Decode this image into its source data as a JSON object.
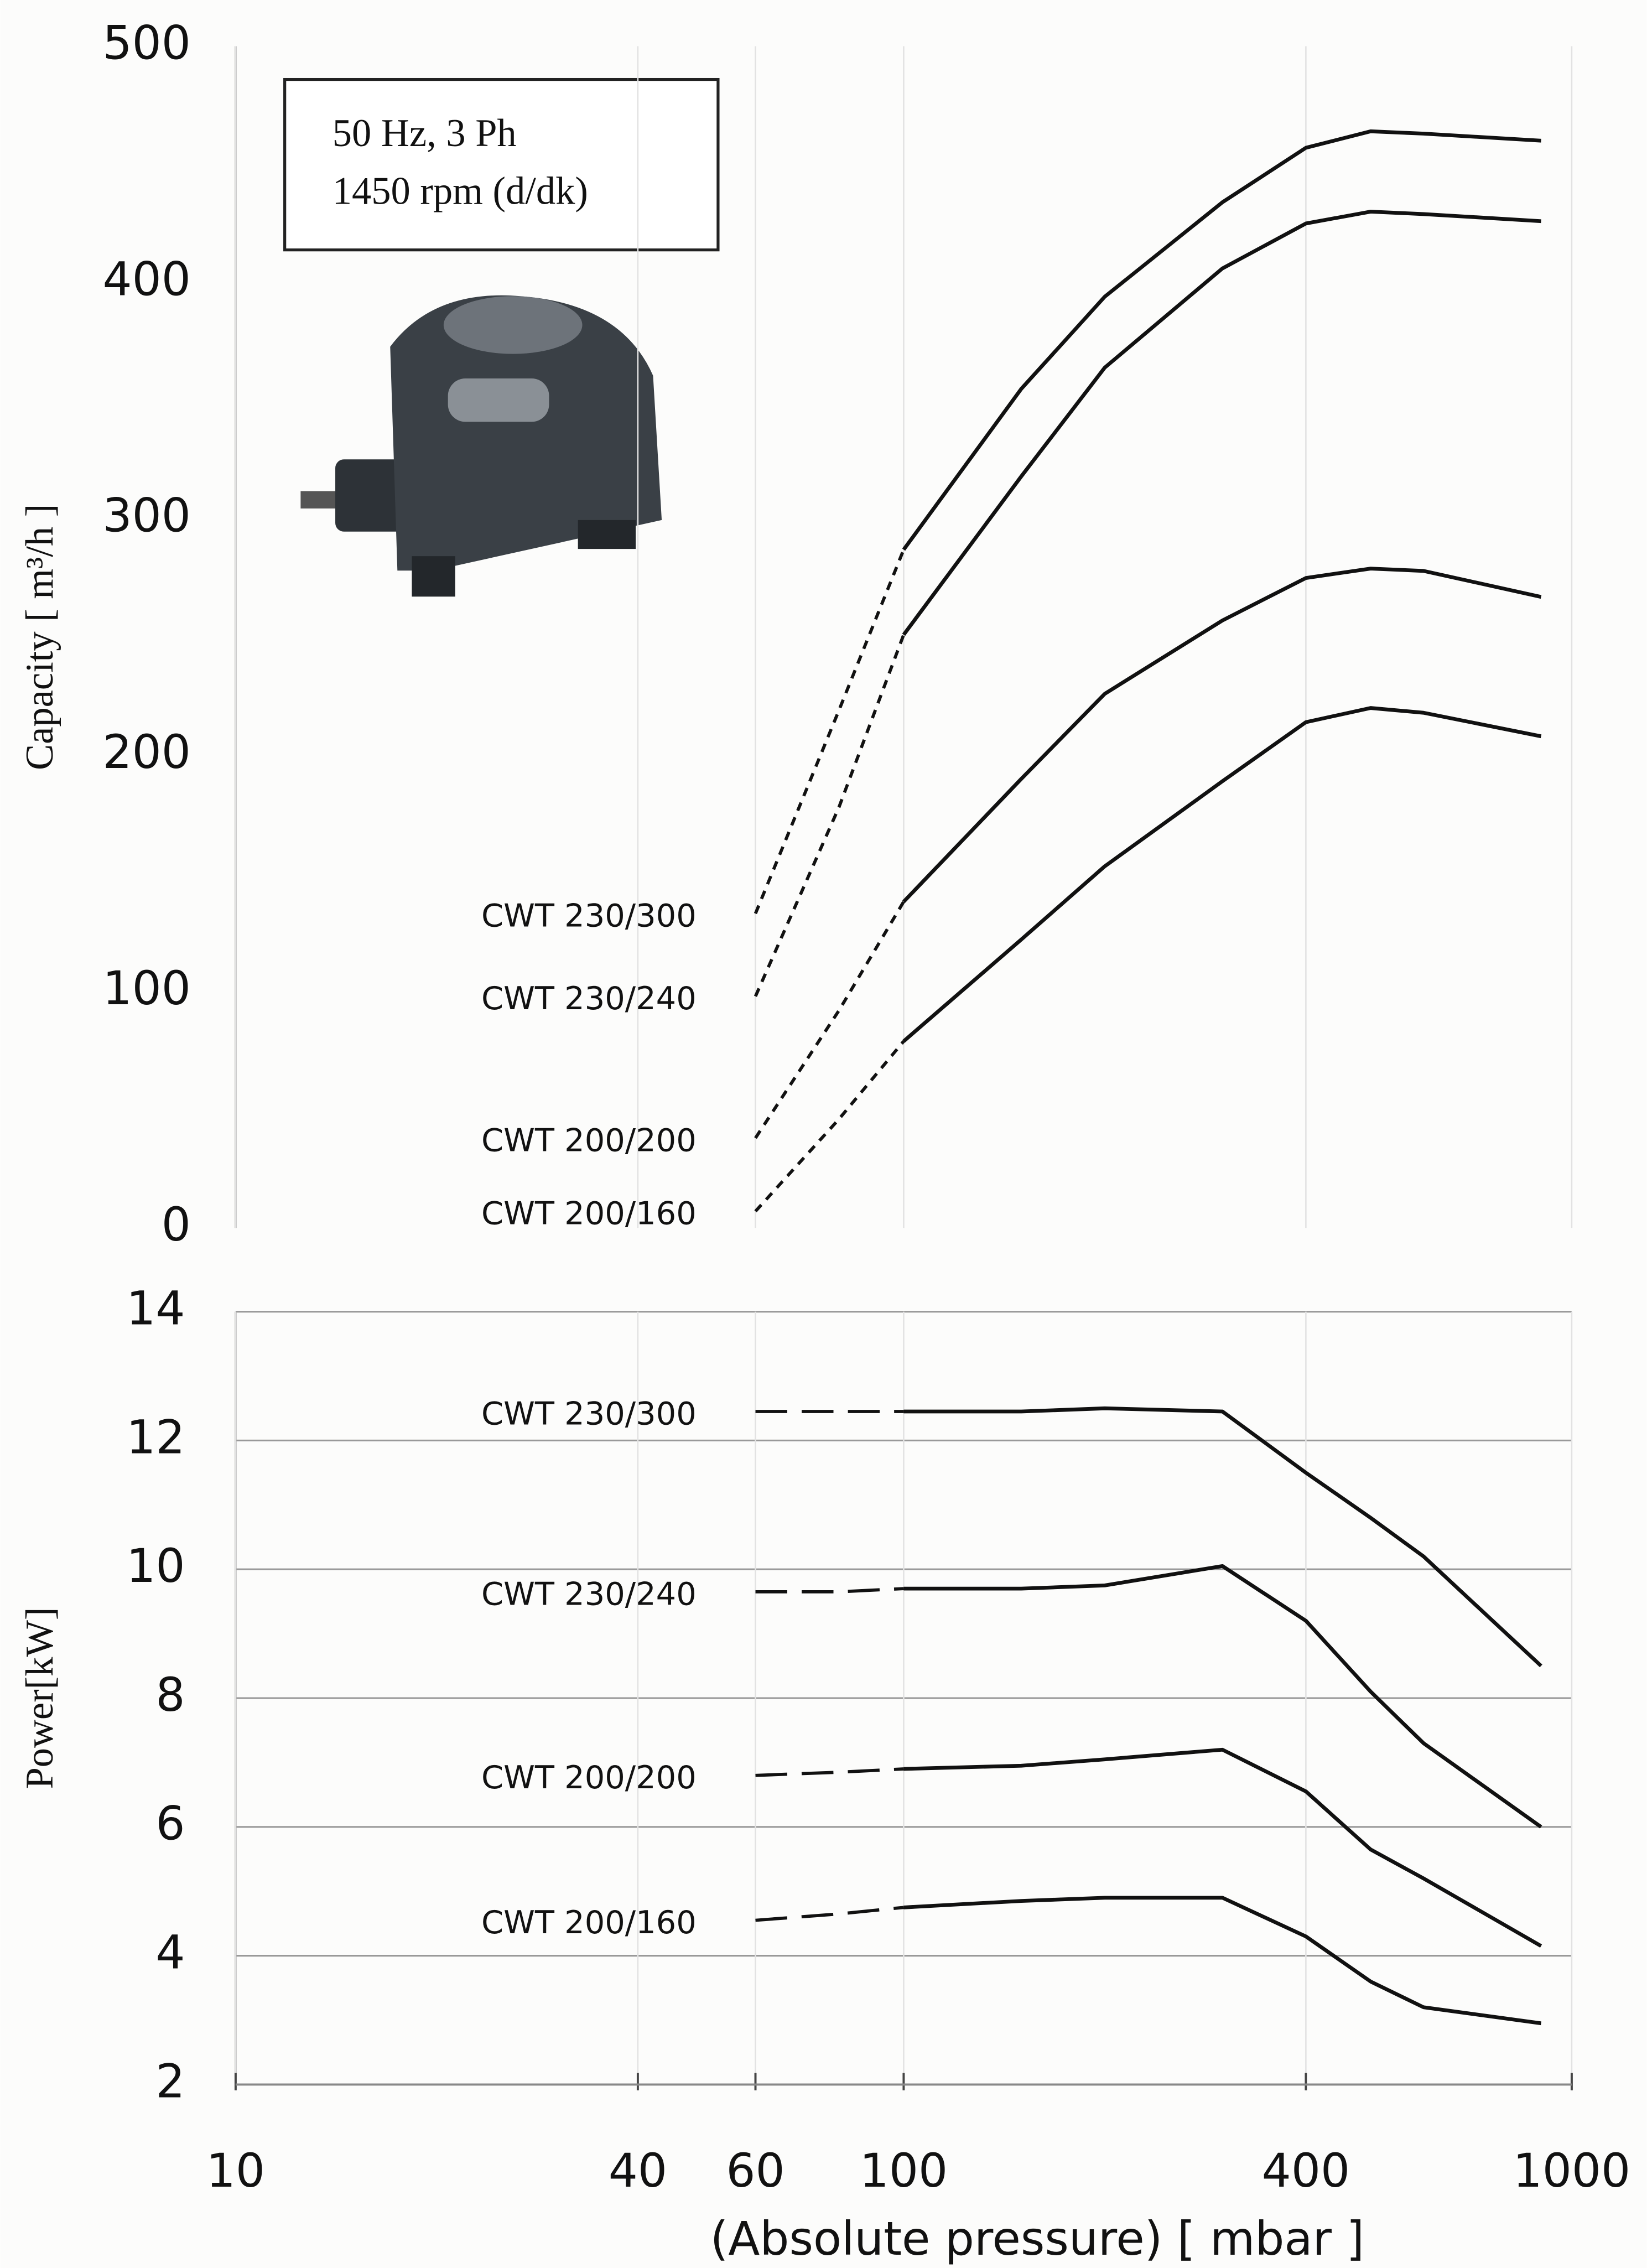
{
  "chart_data": [
    {
      "type": "line",
      "ylabel": "Capacity [ m³/h ]",
      "annotation": [
        "50 Hz, 3 Ph",
        "1450 rpm (d/dk)"
      ],
      "xscale": "log",
      "xlim": [
        10,
        1000
      ],
      "xticks": [
        10,
        40,
        60,
        100,
        400,
        1000
      ],
      "show_xtick_labels": false,
      "ylim": [
        0,
        500
      ],
      "yticks": [
        0,
        100,
        200,
        300,
        400,
        500
      ],
      "grid_x": true,
      "grid_y": false,
      "dashed_below_x": 100,
      "x": [
        60,
        80,
        100,
        150,
        200,
        300,
        400,
        500,
        600,
        900
      ],
      "series": [
        {
          "name": "CWT 230/300",
          "color": "#111111",
          "values": [
            133,
            219,
            287,
            355,
            394,
            434,
            457,
            464,
            463,
            460
          ]
        },
        {
          "name": "CWT 230/240",
          "color": "#111111",
          "values": [
            98,
            178,
            251,
            318,
            364,
            406,
            425,
            430,
            429,
            426
          ]
        },
        {
          "name": "CWT 200/200",
          "color": "#111111",
          "values": [
            38,
            92,
            138,
            190,
            226,
            257,
            275,
            279,
            278,
            267
          ]
        },
        {
          "name": "CWT 200/160",
          "color": "#111111",
          "values": [
            7,
            46,
            79,
            122,
            153,
            189,
            214,
            220,
            218,
            208
          ]
        }
      ]
    },
    {
      "type": "line",
      "ylabel": "Power[kW]",
      "xlabel": "(Absolute pressure) [ mbar ]",
      "xscale": "log",
      "xlim": [
        10,
        1000
      ],
      "xticks": [
        10,
        40,
        60,
        100,
        400,
        1000
      ],
      "show_xtick_labels": true,
      "ylim": [
        2,
        14
      ],
      "yticks": [
        2,
        4,
        6,
        8,
        10,
        12,
        14
      ],
      "grid_x": true,
      "grid_y": true,
      "dashed_below_x": 100,
      "x": [
        60,
        80,
        100,
        150,
        200,
        300,
        400,
        500,
        600,
        900
      ],
      "series": [
        {
          "name": "CWT 230/300",
          "color": "#111111",
          "values": [
            12.45,
            12.45,
            12.45,
            12.45,
            12.5,
            12.45,
            11.5,
            10.8,
            10.2,
            8.5
          ]
        },
        {
          "name": "CWT 230/240",
          "color": "#111111",
          "values": [
            9.65,
            9.65,
            9.7,
            9.7,
            9.75,
            10.05,
            9.2,
            8.1,
            7.3,
            6.0
          ]
        },
        {
          "name": "CWT 200/200",
          "color": "#111111",
          "values": [
            6.8,
            6.85,
            6.9,
            6.95,
            7.05,
            7.2,
            6.55,
            5.65,
            5.2,
            4.15
          ]
        },
        {
          "name": "CWT 200/160",
          "color": "#111111",
          "values": [
            4.55,
            4.65,
            4.75,
            4.85,
            4.9,
            4.9,
            4.3,
            3.6,
            3.2,
            2.95
          ]
        }
      ]
    }
  ]
}
